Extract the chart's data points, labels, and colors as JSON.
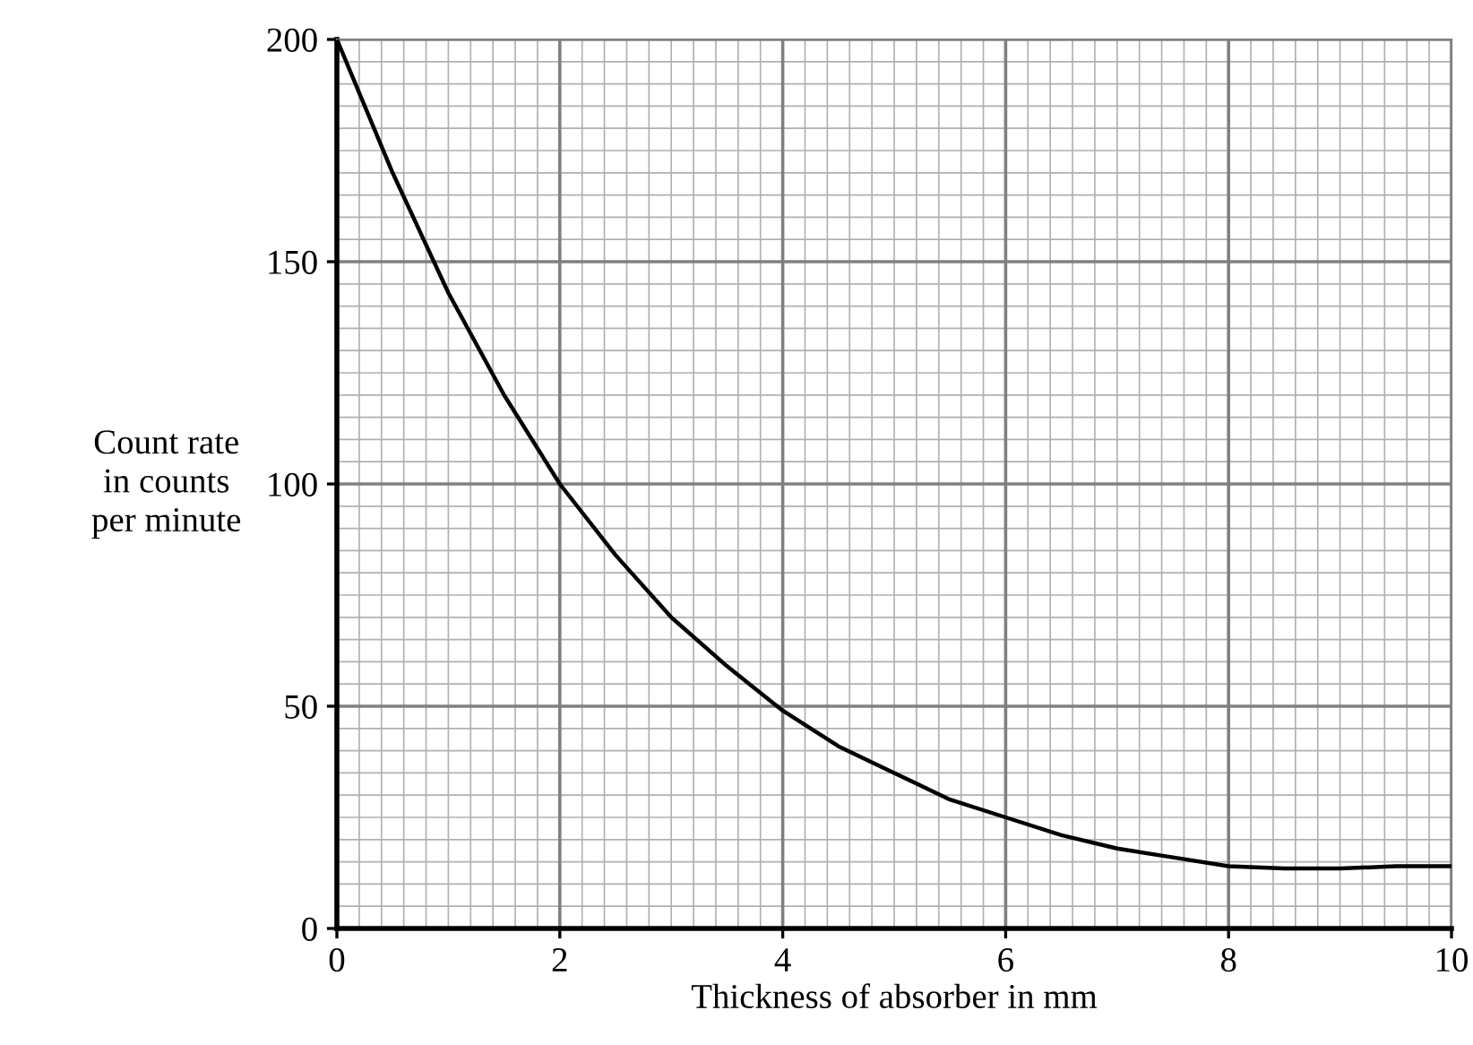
{
  "chart_data": {
    "type": "line",
    "xlabel": "Thickness of absorber in mm",
    "ylabel": "Count rate\nin counts\nper minute",
    "x": [
      0,
      0.5,
      1,
      1.5,
      2,
      2.5,
      3,
      3.5,
      4,
      4.5,
      5,
      5.5,
      6,
      6.5,
      7,
      7.5,
      8,
      8.5,
      9,
      9.5,
      10
    ],
    "series": [
      {
        "color": "#000000",
        "values": [
          200,
          170,
          143,
          120,
          100,
          84,
          70,
          59,
          49,
          41,
          35,
          29,
          25,
          21,
          18,
          16,
          14,
          13.5,
          13.5,
          14,
          14
        ]
      }
    ],
    "xlim": [
      0,
      10
    ],
    "ylim": [
      0,
      200
    ],
    "xticks": [
      0,
      2,
      4,
      6,
      8,
      10
    ],
    "yticks": [
      0,
      50,
      100,
      150,
      200
    ],
    "grid": true,
    "marker": "none",
    "line_style": "solid"
  }
}
